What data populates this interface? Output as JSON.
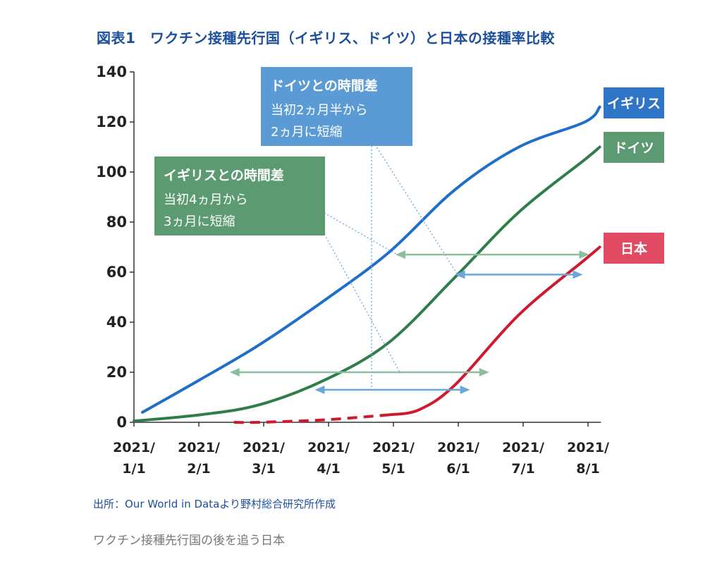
{
  "title": "図表1　ワクチン接種先行国（イギリス、ドイツ）と日本の接種率比較",
  "source": "出所：Our World in Dataより野村総合研究所作成",
  "caption": "ワクチン接種先行国の後を追う日本",
  "colors": {
    "uk": "#1f6fc8",
    "germany": "#2e7d4a",
    "japan": "#d0192e",
    "uk_tag": "#2e75c8",
    "germany_tag": "#5c9a72",
    "japan_tag": "#e04a62",
    "box_germany": "#5b9bd5",
    "box_uk": "#5c9a72",
    "arrow_blue": "#6aa6dc",
    "arrow_green": "#8bbf9c"
  },
  "annotations": {
    "germany_box": {
      "head": "ドイツとの時間差",
      "line1": "当初2ヵ月半から",
      "line2": "2ヵ月に短縮"
    },
    "uk_box": {
      "head": "イギリスとの時間差",
      "line1": "当初4ヵ月から",
      "line2": "3ヵ月に短縮"
    }
  },
  "chart_data": {
    "type": "line",
    "title": "図表1　ワクチン接種先行国（イギリス、ドイツ）と日本の接種率比較",
    "xlabel": "",
    "ylabel": "",
    "ylim": [
      0,
      140
    ],
    "yticks": [
      0,
      20,
      40,
      60,
      80,
      100,
      120,
      140
    ],
    "x_ticks": [
      {
        "month": 0,
        "line1": "2021/",
        "line2": "1/1"
      },
      {
        "month": 1,
        "line1": "2021/",
        "line2": "2/1"
      },
      {
        "month": 2,
        "line1": "2021/",
        "line2": "3/1"
      },
      {
        "month": 3,
        "line1": "2021/",
        "line2": "4/1"
      },
      {
        "month": 4,
        "line1": "2021/",
        "line2": "5/1"
      },
      {
        "month": 5,
        "line1": "2021/",
        "line2": "6/1"
      },
      {
        "month": 6,
        "line1": "2021/",
        "line2": "7/1"
      },
      {
        "month": 7,
        "line1": "2021/",
        "line2": "8/1"
      }
    ],
    "series": [
      {
        "key": "uk",
        "name": "イギリス",
        "x": [
          "2021-01-05",
          "2021-02-01",
          "2021-03-01",
          "2021-04-01",
          "2021-05-01",
          "2021-06-01",
          "2021-07-01",
          "2021-08-01",
          "2021-08-08"
        ],
        "y": [
          4,
          17,
          31,
          49,
          68,
          93,
          110,
          120,
          126
        ]
      },
      {
        "key": "germany",
        "name": "ドイツ",
        "x": [
          "2021-01-01",
          "2021-02-01",
          "2021-03-01",
          "2021-04-01",
          "2021-05-01",
          "2021-06-01",
          "2021-07-01",
          "2021-08-01",
          "2021-08-08"
        ],
        "y": [
          0.5,
          3,
          7,
          17,
          32,
          58,
          84,
          105,
          110
        ]
      },
      {
        "key": "japan",
        "name": "日本",
        "x": [
          "2021-02-17",
          "2021-03-01",
          "2021-04-01",
          "2021-05-01",
          "2021-05-15",
          "2021-06-01",
          "2021-07-01",
          "2021-08-01",
          "2021-08-08"
        ],
        "y": [
          0,
          0,
          1,
          3,
          5,
          15,
          43,
          65,
          70
        ],
        "dashed_until": "2021-05-01"
      }
    ],
    "gap_arrows": [
      {
        "color": "green",
        "x1": "2021-02-15",
        "x2": "2021-06-17",
        "y": 20
      },
      {
        "color": "blue",
        "x1": "2021-03-27",
        "x2": "2021-06-08",
        "y": 13
      },
      {
        "color": "green",
        "x1": "2021-05-04",
        "x2": "2021-08-03",
        "y": 67
      },
      {
        "color": "blue",
        "x1": "2021-06-01",
        "x2": "2021-07-31",
        "y": 59
      }
    ]
  }
}
